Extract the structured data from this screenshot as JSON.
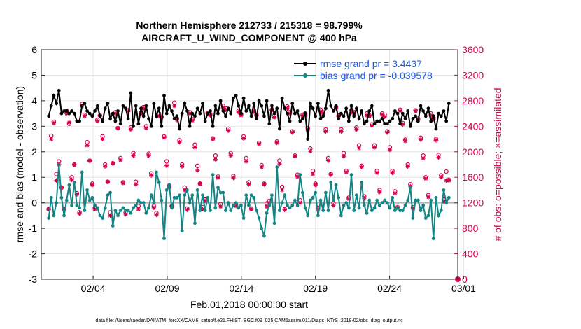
{
  "chart_data": {
    "type": "line",
    "title_line1": "Northern Hemisphere 212733 / 215318 = 98.799%",
    "title_line2": "AIRCRAFT_U_WIND_COMPONENT @ 400 hPa",
    "xlabel": "Feb.01,2018 00:00:00 start",
    "ylabel_left": "rmse and bias (model - observation)",
    "ylabel_right": "# of obs: o=possible; ×=assimilated",
    "footer": "data file: /Users/raeder/DAI/ATM_forcXX/CAM6_setup/f.e21.FHIST_BGC.f09_025.CAM6assim.011/Diags_NTrS_2018-02/obs_diag_output.nc",
    "x_range": [
      0.5,
      28.6
    ],
    "x_ticks": [
      4,
      9,
      14,
      19,
      24,
      29
    ],
    "x_tick_labels": [
      "02/04",
      "02/09",
      "02/14",
      "02/19",
      "02/24",
      "03/01"
    ],
    "ylim_left": [
      -3,
      6
    ],
    "y_ticks_left": [
      "-3",
      "-2",
      "-1",
      "0",
      "1",
      "2",
      "3",
      "4",
      "5",
      "6"
    ],
    "ylim_right": [
      0,
      3600
    ],
    "y_ticks_right": [
      "0",
      "400",
      "800",
      "1200",
      "1600",
      "2000",
      "2400",
      "2800",
      "3200",
      "3600"
    ],
    "legend": [
      {
        "name": "rmse grand pr = 3.4437",
        "color": "#000000"
      },
      {
        "name": "bias grand pr = -0.039578",
        "color": "#007f7f"
      }
    ],
    "colors": {
      "rmse": "#000000",
      "bias": "#138585",
      "obs": "#d6004d",
      "legend_text": "#1c55e6",
      "zero_line": "#b3b3b3",
      "grid": "#e6e6e6"
    },
    "series": [
      {
        "name": "rmse",
        "values": [
          3.4,
          3.8,
          4.2,
          3.9,
          4.4,
          3.5,
          3.6,
          3.6,
          3.5,
          3.6,
          3.5,
          3.2,
          3.2,
          3.8,
          3.9,
          3.6,
          3.5,
          3.4,
          3.6,
          3.8,
          3.4,
          3.2,
          3.7,
          3.9,
          3.3,
          3.5,
          3.2,
          3.6,
          3.1,
          3.8,
          3.7,
          3.3,
          4.3,
          3.0,
          3.8,
          3.1,
          3.7,
          3.4,
          3.8,
          3.3,
          3.0,
          3.9,
          3.4,
          3.7,
          3.0,
          4.2,
          3.5,
          3.8,
          3.6,
          3.3,
          3.4,
          2.9,
          3.5,
          3.9,
          3.6,
          3.0,
          3.5,
          3.4,
          3.7,
          3.5,
          3.9,
          3.2,
          3.5,
          3.6,
          3.0,
          3.8,
          3.5,
          4.0,
          3.6,
          3.4,
          3.7,
          3.5,
          4.1,
          4.2,
          3.8,
          3.5,
          4.1,
          3.6,
          3.8,
          3.4,
          3.9,
          3.3,
          4.0,
          3.8,
          3.4,
          4.0,
          3.1,
          3.8,
          3.5,
          3.7,
          2.9,
          4.1,
          3.7,
          3.5,
          3.2,
          3.9,
          3.5,
          3.6,
          3.2,
          3.3,
          3.5,
          2.5,
          3.9,
          3.7,
          3.4,
          3.9,
          3.3,
          3.4,
          3.7,
          4.4,
          3.8,
          3.6,
          3.8,
          3.3,
          3.5,
          3.4,
          3.7,
          3.2,
          3.8,
          3.4,
          3.7,
          3.3,
          3.6,
          3.1,
          3.2,
          3.6,
          3.8,
          3.1,
          3.2,
          3.2,
          3.3,
          3.1,
          3.1,
          3.2,
          3.3,
          3.6,
          3.5,
          3.1,
          3.5,
          3.3,
          3.6,
          3.0,
          3.3,
          3.4,
          3.2,
          3.8,
          3.6,
          3.4,
          3.7,
          3.2,
          3.4,
          2.9,
          3.5,
          3.4,
          3.6,
          3.2,
          3.9
        ]
      },
      {
        "name": "bias",
        "values": [
          -0.6,
          0.2,
          -0.5,
          0.0,
          1.5,
          0.2,
          -0.5,
          0.1,
          0.7,
          -0.1,
          0.8,
          -0.1,
          -0.2,
          1.2,
          -0.3,
          0.5,
          0.1,
          0.2,
          -0.1,
          -0.2,
          -0.5,
          -0.6,
          -0.2,
          0.3,
          0.4,
          -0.9,
          -0.3,
          -0.5,
          -0.3,
          -0.2,
          -0.3,
          -0.3,
          -0.4,
          -0.2,
          -0.1,
          0.1,
          0.0,
          0.0,
          -0.4,
          -0.2,
          0.3,
          0.0,
          1.2,
          0.8,
          0.1,
          -1.4,
          0.5,
          0.7,
          -0.2,
          0.2,
          0.2,
          0.3,
          -1.1,
          0.3,
          0.5,
          0.0,
          0.3,
          -0.8,
          0.5,
          -0.3,
          0.3,
          -0.3,
          0.2,
          -0.3,
          1.1,
          -0.2,
          0.6,
          0.4,
          0.4,
          -0.3,
          0.0,
          -0.3,
          -0.1,
          0.0,
          -0.2,
          -0.1,
          -0.6,
          0.3,
          -0.1,
          0.3,
          0.2,
          -0.3,
          -0.6,
          -1.0,
          -1.3,
          -0.4,
          -0.1,
          0.3,
          -0.8,
          1.4,
          -0.3,
          0.0,
          0.3,
          -0.1,
          -0.2,
          -0.1,
          0.1,
          -0.1,
          1.1,
          0.4,
          -0.2,
          -0.5,
          0.1,
          0.2,
          0.4,
          -0.5,
          0.1,
          -0.3,
          0.4,
          -0.3,
          0.8,
          0.1,
          0.7,
          0.2,
          -0.5,
          -0.1,
          0.0,
          -0.2,
          1.1,
          -0.3,
          0.3,
          -0.2,
          0.8,
          -0.1,
          -0.4,
          0.1,
          -0.3,
          -0.2,
          0.1,
          -0.1,
          0.0,
          0.1,
          0.0,
          -0.2,
          0.2,
          -0.3,
          -0.2,
          -0.3,
          -0.3,
          -0.1,
          0.1,
          0.6,
          -0.6,
          0.1,
          0.1,
          -0.3,
          -0.1,
          -0.6,
          -0.5,
          0.1,
          -1.4,
          0.2,
          -0.5,
          -0.3,
          0.5,
          0.0,
          0.2
        ]
      },
      {
        "name": "obs_possible",
        "values": [
          1100,
          2250,
          2470,
          1650,
          1850,
          1440,
          1100,
          2640,
          2440,
          1600,
          1800,
          1350,
          1050,
          2750,
          2580,
          2150,
          1860,
          1500,
          1120,
          2500,
          2570,
          2240,
          1800,
          1530,
          1050,
          1820,
          2620,
          2370,
          1900,
          1520,
          1050,
          2650,
          2380,
          1980,
          1530,
          1150,
          2610,
          2700,
          2400,
          1970,
          1660,
          1150,
          1040,
          2600,
          2550,
          2240,
          1850,
          1470,
          1150,
          2770,
          2520,
          2180,
          1800,
          1440,
          1110,
          2620,
          2510,
          2110,
          1780,
          1500,
          1130,
          1250,
          2610,
          2590,
          2210,
          1940,
          1610,
          1180,
          2720,
          2680,
          2360,
          1980,
          1620,
          1170,
          2640,
          2590,
          2240,
          1900,
          1520,
          1110,
          2650,
          2580,
          2140,
          1790,
          1500,
          1190,
          1230,
          2660,
          2570,
          2160,
          1860,
          1450,
          1100,
          2710,
          2620,
          2320,
          1940,
          1640,
          1240,
          2580,
          2600,
          2370,
          2050,
          1700,
          1500,
          1120,
          2660,
          2620,
          2350,
          1900,
          1650,
          1200,
          2700,
          2570,
          2350,
          1980,
          1700,
          1280,
          2650,
          2620,
          2380,
          2100,
          1780,
          1300,
          2600,
          2570,
          2430,
          2100,
          1700,
          1400,
          2600,
          2580,
          2320,
          2070,
          1700,
          1380,
          1130,
          2660,
          2450,
          2190,
          1800,
          1490,
          1130,
          2650,
          2520,
          2220,
          1940,
          1600,
          1320,
          2600,
          2530,
          2200,
          1950,
          1630,
          1250,
          1690,
          1560
        ]
      },
      {
        "name": "obs_assimilated",
        "values": [
          1100,
          2200,
          2450,
          1550,
          1800,
          1440,
          1100,
          2600,
          2460,
          1560,
          1800,
          1330,
          1030,
          2720,
          2560,
          2100,
          1860,
          1480,
          1100,
          2480,
          2570,
          2200,
          1770,
          1530,
          1000,
          1820,
          2600,
          2370,
          1870,
          1510,
          1020,
          2630,
          2350,
          1940,
          1490,
          1100,
          2600,
          2680,
          2370,
          1940,
          1630,
          1120,
          1010,
          2560,
          2540,
          2220,
          1780,
          1440,
          1140,
          2720,
          2500,
          2150,
          1770,
          1400,
          1090,
          2600,
          2490,
          2070,
          1710,
          1500,
          1100,
          1230,
          2600,
          2570,
          2200,
          1880,
          1590,
          1140,
          2690,
          2660,
          2330,
          1940,
          1590,
          1150,
          2620,
          2570,
          2210,
          1850,
          1490,
          1100,
          2630,
          2560,
          2120,
          1760,
          1490,
          1140,
          1200,
          2650,
          2540,
          2140,
          1810,
          1400,
          1090,
          2680,
          2600,
          2300,
          1930,
          1610,
          1200,
          2560,
          2570,
          2340,
          2010,
          1650,
          1480,
          1100,
          2630,
          2600,
          2320,
          1860,
          1640,
          1160,
          2680,
          2550,
          2320,
          1930,
          1680,
          1260,
          2620,
          2600,
          2350,
          2060,
          1760,
          1270,
          2570,
          2560,
          2410,
          2070,
          1670,
          1370,
          2580,
          2550,
          2300,
          2030,
          1670,
          1350,
          1120,
          2640,
          2430,
          2170,
          1770,
          1460,
          1110,
          2640,
          2500,
          2190,
          1900,
          1580,
          1290,
          2570,
          2510,
          2180,
          1910,
          1600,
          1220,
          1550,
          1550
        ]
      },
      {
        "name": "obs_zero_marker",
        "values": [
          0
        ]
      }
    ]
  }
}
